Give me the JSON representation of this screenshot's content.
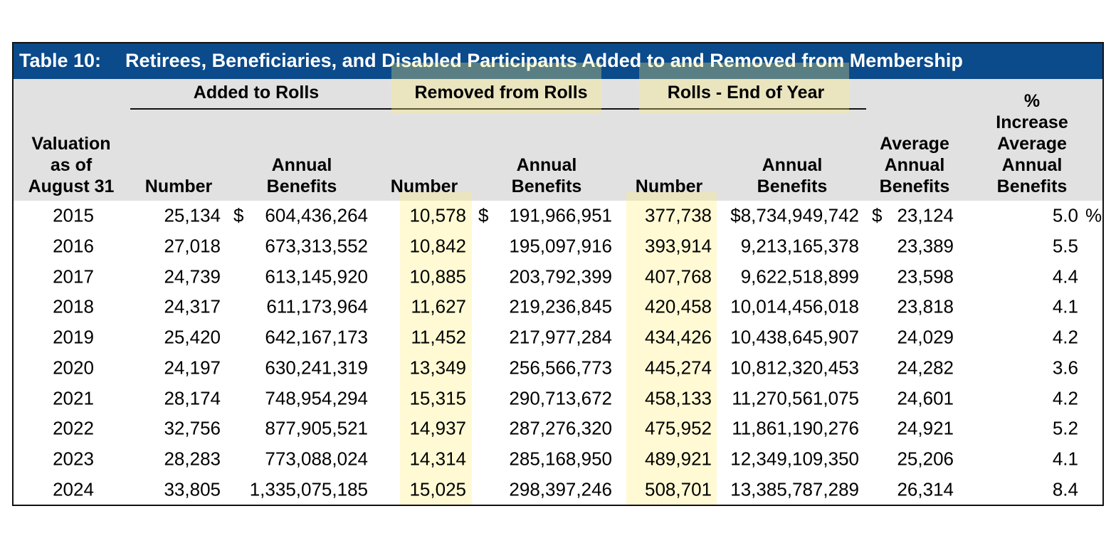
{
  "header": {
    "table_label": "Table 10:",
    "title": "Retirees, Beneficiaries, and Disabled Participants Added to and Removed from Membership"
  },
  "table": {
    "group_headers": [
      "Added to Rolls",
      "Removed from Rolls",
      "Rolls - End of Year"
    ],
    "columns": [
      "Valuation\nas of\nAugust 31",
      "Number",
      "Annual\nBenefits",
      "Number",
      "Annual\nBenefits",
      "Number",
      "Annual\nBenefits",
      "Average\nAnnual\nBenefits",
      "% Increase\nAverage\nAnnual\nBenefits"
    ],
    "currency_symbol": "$",
    "percent_symbol": "%",
    "rows": [
      [
        "2015",
        "25,134",
        "604,436,264",
        "10,578",
        "191,966,951",
        "377,738",
        "$8,734,949,742",
        "23,124",
        "5.0"
      ],
      [
        "2016",
        "27,018",
        "673,313,552",
        "10,842",
        "195,097,916",
        "393,914",
        "9,213,165,378",
        "23,389",
        "5.5"
      ],
      [
        "2017",
        "24,739",
        "613,145,920",
        "10,885",
        "203,792,399",
        "407,768",
        "9,622,518,899",
        "23,598",
        "4.4"
      ],
      [
        "2018",
        "24,317",
        "611,173,964",
        "11,627",
        "219,236,845",
        "420,458",
        "10,014,456,018",
        "23,818",
        "4.1"
      ],
      [
        "2019",
        "25,420",
        "642,167,173",
        "11,452",
        "217,977,284",
        "434,426",
        "10,438,645,907",
        "24,029",
        "4.2"
      ],
      [
        "2020",
        "24,197",
        "630,241,319",
        "13,349",
        "256,566,773",
        "445,274",
        "10,812,320,453",
        "24,282",
        "3.6"
      ],
      [
        "2021",
        "28,174",
        "748,954,294",
        "15,315",
        "290,713,672",
        "458,133",
        "11,270,561,075",
        "24,601",
        "4.2"
      ],
      [
        "2022",
        "32,756",
        "877,905,521",
        "14,937",
        "287,276,320",
        "475,952",
        "11,861,190,276",
        "24,921",
        "5.2"
      ],
      [
        "2023",
        "28,283",
        "773,088,024",
        "14,314",
        "285,168,950",
        "489,921",
        "12,349,109,350",
        "25,206",
        "4.1"
      ],
      [
        "2024",
        "33,805",
        "1,335,075,185",
        "15,025",
        "298,397,246",
        "508,701",
        "13,385,787,289",
        "26,314",
        "8.4"
      ]
    ]
  }
}
